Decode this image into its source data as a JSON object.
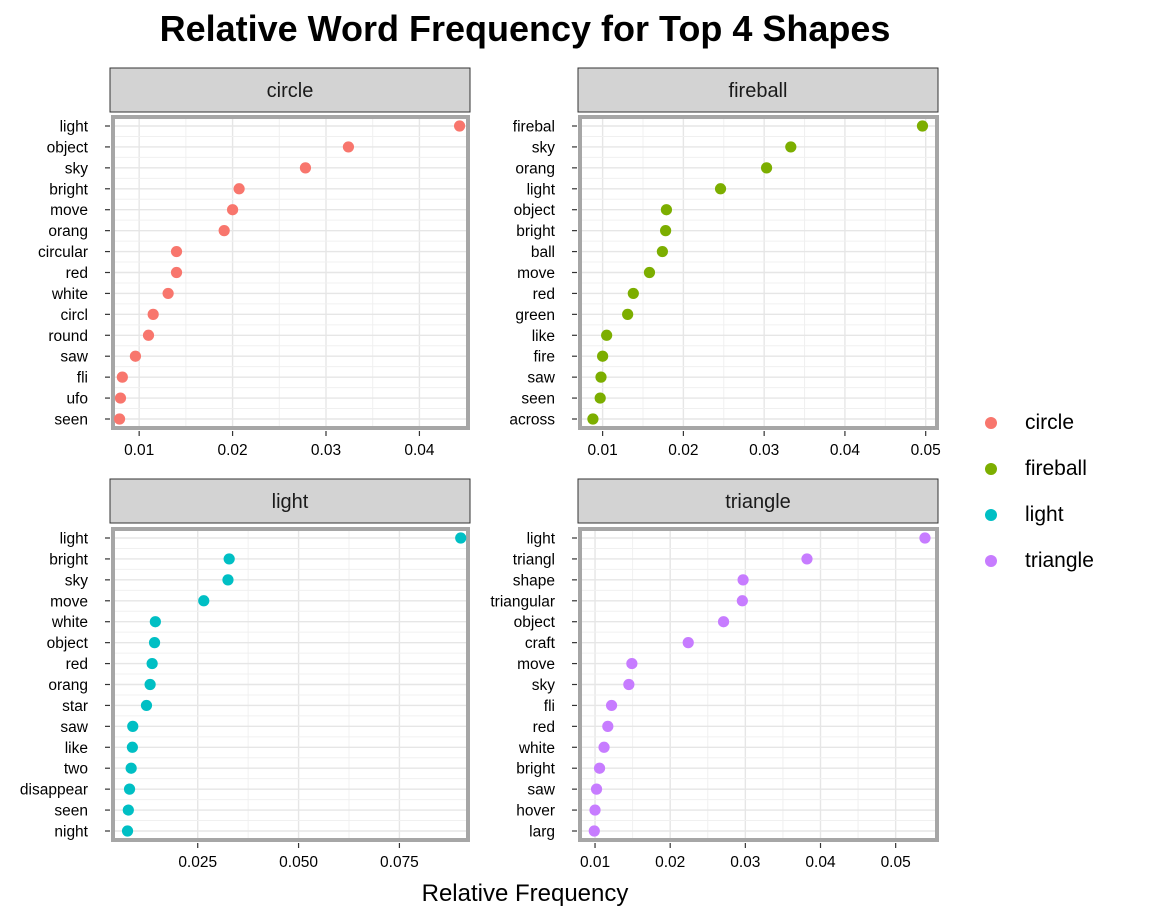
{
  "chart_data": {
    "type": "scatter",
    "title": "Relative Word Frequency for Top 4 Shapes",
    "xlabel": "Relative Frequency",
    "legend": {
      "position": "right",
      "items": [
        {
          "name": "circle",
          "color": "#F8766D"
        },
        {
          "name": "fireball",
          "color": "#7CAE00"
        },
        {
          "name": "light",
          "color": "#00BFC4"
        },
        {
          "name": "triangle",
          "color": "#C77CFF"
        }
      ]
    },
    "grid": true,
    "facets": [
      {
        "name": "circle",
        "color": "#F8766D",
        "xlim": [
          0.0072,
          0.0452
        ],
        "xticks": [
          0.01,
          0.02,
          0.03,
          0.04
        ],
        "xtick_labels": [
          "0.01",
          "0.02",
          "0.03",
          "0.04"
        ],
        "words": [
          "light",
          "object",
          "sky",
          "bright",
          "move",
          "orang",
          "circular",
          "red",
          "white",
          "circl",
          "round",
          "saw",
          "fli",
          "ufo",
          "seen"
        ],
        "values": [
          0.0443,
          0.0324,
          0.0278,
          0.0207,
          0.02,
          0.0191,
          0.014,
          0.014,
          0.0131,
          0.0115,
          0.011,
          0.0096,
          0.0082,
          0.008,
          0.0079
        ]
      },
      {
        "name": "fireball",
        "color": "#7CAE00",
        "xlim": [
          0.0072,
          0.0514
        ],
        "xticks": [
          0.01,
          0.02,
          0.03,
          0.04,
          0.05
        ],
        "xtick_labels": [
          "0.01",
          "0.02",
          "0.03",
          "0.04",
          "0.05"
        ],
        "words": [
          "firebal",
          "sky",
          "orang",
          "light",
          "object",
          "bright",
          "ball",
          "move",
          "red",
          "green",
          "like",
          "fire",
          "saw",
          "seen",
          "across"
        ],
        "values": [
          0.0496,
          0.0333,
          0.0303,
          0.0246,
          0.0179,
          0.0178,
          0.0174,
          0.0158,
          0.0138,
          0.0131,
          0.0105,
          0.01,
          0.0098,
          0.0097,
          0.0088
        ]
      },
      {
        "name": "light",
        "color": "#00BFC4",
        "xlim": [
          0.004,
          0.092
        ],
        "xticks": [
          0.025,
          0.05,
          0.075
        ],
        "xtick_labels": [
          "0.025",
          "0.050",
          "0.075"
        ],
        "words": [
          "light",
          "bright",
          "sky",
          "move",
          "white",
          "object",
          "red",
          "orang",
          "star",
          "saw",
          "like",
          "two",
          "disappear",
          "seen",
          "night"
        ],
        "values": [
          0.0902,
          0.0328,
          0.0325,
          0.0265,
          0.0145,
          0.0143,
          0.0137,
          0.0132,
          0.0123,
          0.0089,
          0.0088,
          0.0085,
          0.0081,
          0.0078,
          0.0076
        ]
      },
      {
        "name": "triangle",
        "color": "#C77CFF",
        "xlim": [
          0.008,
          0.0555
        ],
        "xticks": [
          0.01,
          0.02,
          0.03,
          0.04,
          0.05
        ],
        "xtick_labels": [
          "0.01",
          "0.02",
          "0.03",
          "0.04",
          "0.05"
        ],
        "words": [
          "light",
          "triangl",
          "shape",
          "triangular",
          "object",
          "craft",
          "move",
          "sky",
          "fli",
          "red",
          "white",
          "bright",
          "saw",
          "hover",
          "larg"
        ],
        "values": [
          0.0539,
          0.0382,
          0.0297,
          0.0296,
          0.0271,
          0.0224,
          0.0149,
          0.0145,
          0.0122,
          0.0117,
          0.0112,
          0.0106,
          0.0102,
          0.01,
          0.0099
        ]
      }
    ]
  }
}
